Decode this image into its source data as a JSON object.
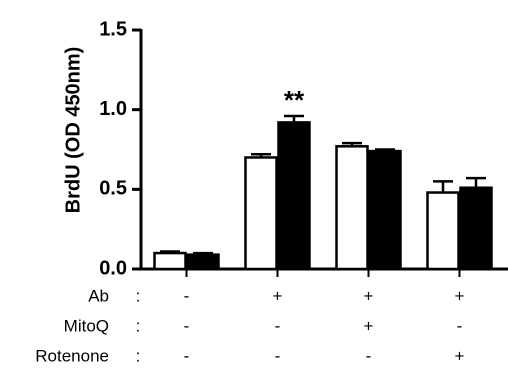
{
  "chart_data": {
    "type": "bar",
    "ylabel": "BrdU (OD 450nm)",
    "ylim": [
      0,
      1.5
    ],
    "yticks": [
      {
        "value": 0,
        "label": "0.0"
      },
      0.5,
      {
        "value": 1,
        "label": "1.0"
      },
      1.5
    ],
    "series": [
      {
        "color": "#ffffff",
        "values": [
          0.1,
          0.7,
          0.77,
          0.48
        ],
        "errors": [
          0.01,
          0.02,
          0.02,
          0.07
        ]
      },
      {
        "color": "#000000",
        "values": [
          0.09,
          0.92,
          0.74,
          0.51
        ],
        "errors": [
          0.01,
          0.04,
          0.01,
          0.06
        ]
      }
    ],
    "annotations": [
      {
        "text": "**"
      }
    ],
    "separator": ":",
    "conditions": [
      {
        "label": "Ab",
        "values": [
          "-",
          "+",
          "+",
          "+"
        ]
      },
      {
        "label": "MitoQ",
        "values": [
          "-",
          "-",
          "+",
          "-"
        ]
      },
      {
        "label": "Rotenone",
        "values": [
          "-",
          "-",
          "-",
          "+"
        ]
      }
    ]
  }
}
